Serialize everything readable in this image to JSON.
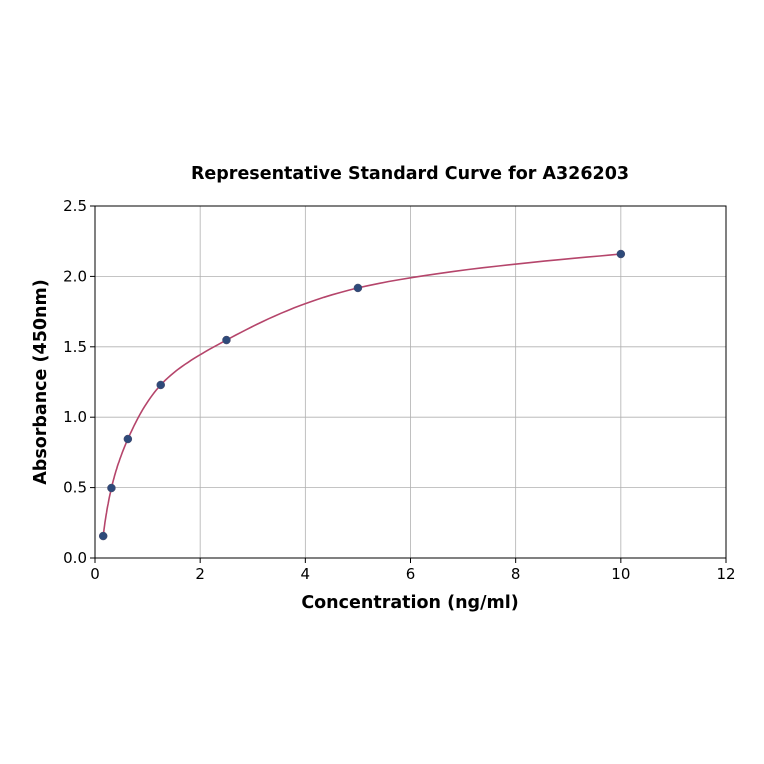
{
  "chart_data": {
    "type": "scatter",
    "title": "Representative Standard Curve for A326203",
    "xlabel": "Concentration (ng/ml)",
    "ylabel": "Absorbance (450nm)",
    "xlim": [
      0,
      12
    ],
    "ylim": [
      0,
      2.5
    ],
    "xticks": [
      "0",
      "2",
      "4",
      "6",
      "8",
      "10",
      "12"
    ],
    "yticks": [
      "0.0",
      "0.5",
      "1.0",
      "1.5",
      "2.0",
      "2.5"
    ],
    "grid": true,
    "points": [
      {
        "x": 0.156,
        "y": 0.156
      },
      {
        "x": 0.3125,
        "y": 0.497
      },
      {
        "x": 0.625,
        "y": 0.845
      },
      {
        "x": 1.25,
        "y": 1.229
      },
      {
        "x": 2.5,
        "y": 1.548
      },
      {
        "x": 5,
        "y": 1.918
      },
      {
        "x": 10,
        "y": 2.159
      }
    ],
    "curve_color": "#b5456b",
    "point_color": "#2e4a7a"
  }
}
